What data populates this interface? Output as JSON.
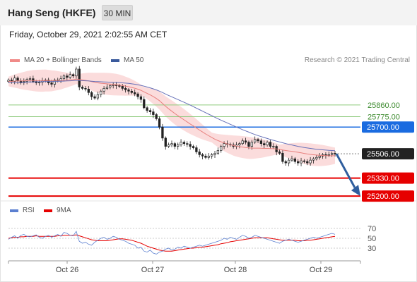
{
  "header": {
    "title": "Hang Seng (HKFE)",
    "timeframe": "30 MIN"
  },
  "timestamp": "Friday, October 29, 2021 2:02:55 AM CET",
  "copyright": "Research © 2021 Trading Central",
  "colors": {
    "bollinger_fill": "#fbdcdc",
    "ma20": "#e8807e",
    "ma50": "#6670b8",
    "up_candle": "#ffffff",
    "down_candle": "#222222",
    "support": "#e60000",
    "pivot": "#1a6be0",
    "resistance": "#8fcb7e",
    "last_price": "#222222",
    "arrow": "#2f5e9e",
    "rsi": "#5b7fd0",
    "rsi_ma": "#e60000"
  },
  "chart_data": [
    {
      "type": "line",
      "name": "price-panel",
      "legend": [
        {
          "label": "MA 20 + Bollinger Bands",
          "color": "#f08a88"
        },
        {
          "label": "MA 50",
          "color": "#3a5a9c"
        }
      ],
      "x_tick_labels": [
        "Oct 26",
        "Oct 27",
        "Oct 28",
        "Oct 29"
      ],
      "ylim": [
        25180,
        26130
      ],
      "levels": [
        {
          "label": "25860.00",
          "value": 25860,
          "kind": "resistance"
        },
        {
          "label": "25775.00",
          "value": 25775,
          "kind": "resistance"
        },
        {
          "label": "25700.00",
          "value": 25700,
          "kind": "pivot"
        },
        {
          "label": "25506.00",
          "value": 25506,
          "kind": "last"
        },
        {
          "label": "25330.00",
          "value": 25330,
          "kind": "support"
        },
        {
          "label": "25200.00",
          "value": 25200,
          "kind": "support"
        }
      ],
      "close": [
        26040,
        26030,
        26055,
        26035,
        26020,
        26030,
        26045,
        26050,
        26030,
        26020,
        26025,
        26035,
        26040,
        26020,
        26010,
        26040,
        26035,
        26050,
        26070,
        26060,
        26080,
        26070,
        26120,
        25990,
        25980,
        25975,
        25950,
        25920,
        25910,
        25935,
        25960,
        25980,
        25990,
        26000,
        26005,
        26000,
        25995,
        25980,
        25970,
        25960,
        25950,
        25940,
        25920,
        25900,
        25840,
        25820,
        25810,
        25790,
        25760,
        25700,
        25620,
        25560,
        25570,
        25580,
        25560,
        25570,
        25590,
        25580,
        25575,
        25560,
        25550,
        25520,
        25500,
        25490,
        25480,
        25490,
        25500,
        25510,
        25530,
        25560,
        25580,
        25575,
        25570,
        25560,
        25570,
        25580,
        25600,
        25590,
        25560,
        25590,
        25610,
        25600,
        25580,
        25570,
        25590,
        25560,
        25560,
        25520,
        25510,
        25450,
        25440,
        25460,
        25470,
        25450,
        25440,
        25455,
        25450,
        25440,
        25460,
        25470,
        25480,
        25490,
        25500,
        25495,
        25500,
        25510,
        25506
      ],
      "ma20": [
        26030,
        26031,
        26033,
        26034,
        26034,
        26035,
        26036,
        26037,
        26037,
        26036,
        26036,
        26036,
        26037,
        26036,
        26035,
        26036,
        26036,
        26037,
        26039,
        26040,
        26042,
        26043,
        26047,
        26044,
        26041,
        26038,
        26034,
        26029,
        26024,
        26020,
        26017,
        26015,
        26013,
        26011,
        26009,
        26007,
        26004,
        26001,
        25996,
        25992,
        25987,
        25981,
        25974,
        25966,
        25955,
        25944,
        25933,
        25921,
        25907,
        25891,
        25871,
        25850,
        25832,
        25815,
        25798,
        25782,
        25767,
        25752,
        25737,
        25722,
        25708,
        25693,
        25678,
        25664,
        25650,
        25637,
        25624,
        25612,
        25602,
        25593,
        25585,
        25578,
        25572,
        25566,
        25562,
        25558,
        25555,
        25552,
        25549,
        25547,
        25547,
        25547,
        25546,
        25545,
        25545,
        25544,
        25543,
        25541,
        25538,
        25534,
        25530,
        25527,
        25524,
        25520,
        25517,
        25513,
        25509,
        25505,
        25502,
        25499,
        25497,
        25495,
        25494,
        25493,
        25492,
        25492,
        25492
      ],
      "ma50": [
        26020,
        26021,
        26022,
        26023,
        26024,
        26025,
        26026,
        26027,
        26027,
        26028,
        26028,
        26029,
        26030,
        26030,
        26030,
        26031,
        26031,
        26032,
        26033,
        26034,
        26035,
        26036,
        26038,
        26037,
        26036,
        26035,
        26034,
        26032,
        26030,
        26029,
        26028,
        26027,
        26026,
        26025,
        26024,
        26023,
        26022,
        26020,
        26018,
        26016,
        26013,
        26010,
        26006,
        26002,
        25996,
        25990,
        25984,
        25977,
        25969,
        25960,
        25950,
        25939,
        25929,
        25919,
        25909,
        25899,
        25889,
        25879,
        25869,
        25859,
        25848,
        25837,
        25826,
        25815,
        25804,
        25793,
        25782,
        25771,
        25760,
        25750,
        25740,
        25730,
        25720,
        25710,
        25700,
        25690,
        25681,
        25672,
        25663,
        25654,
        25646,
        25638,
        25631,
        25624,
        25617,
        25610,
        25604,
        25598,
        25592,
        25586,
        25580,
        25575,
        25570,
        25565,
        25560,
        25556,
        25552,
        25548,
        25545,
        25542,
        25539,
        25537,
        25535,
        25533,
        25531,
        25530,
        25529
      ],
      "forecast_arrow": {
        "from": 25506,
        "to": 25220
      }
    },
    {
      "type": "line",
      "name": "rsi-panel",
      "legend": [
        {
          "label": "RSI",
          "color": "#5b7fd0"
        },
        {
          "label": "9MA",
          "color": "#e60000"
        }
      ],
      "y_tick_labels": [
        "70",
        "50",
        "30"
      ],
      "ylim": [
        10,
        90
      ],
      "rsi": [
        48,
        52,
        55,
        50,
        56,
        58,
        54,
        53,
        55,
        57,
        52,
        50,
        54,
        56,
        52,
        55,
        58,
        54,
        62,
        60,
        56,
        55,
        64,
        44,
        40,
        42,
        38,
        36,
        42,
        46,
        50,
        52,
        48,
        50,
        54,
        52,
        48,
        46,
        44,
        40,
        38,
        36,
        30,
        32,
        24,
        22,
        26,
        20,
        18,
        22,
        24,
        28,
        30,
        26,
        28,
        32,
        30,
        34,
        32,
        30,
        32,
        34,
        36,
        34,
        36,
        38,
        40,
        42,
        44,
        46,
        50,
        48,
        52,
        50,
        48,
        52,
        56,
        54,
        50,
        52,
        56,
        54,
        52,
        50,
        48,
        46,
        44,
        42,
        40,
        44,
        46,
        48,
        46,
        44,
        42,
        44,
        46,
        48,
        50,
        52,
        50,
        52,
        54,
        56,
        58,
        60,
        58
      ],
      "rsi_ma": [
        50,
        51,
        52,
        52,
        53,
        53,
        54,
        54,
        54,
        55,
        54,
        54,
        54,
        54,
        54,
        54,
        55,
        55,
        56,
        56,
        56,
        56,
        57,
        55,
        53,
        51,
        49,
        47,
        46,
        45,
        45,
        45,
        45,
        46,
        47,
        48,
        49,
        49,
        48,
        47,
        46,
        44,
        42,
        40,
        37,
        34,
        32,
        30,
        28,
        26,
        25,
        24,
        24,
        24,
        25,
        26,
        27,
        28,
        29,
        30,
        30,
        31,
        32,
        32,
        33,
        34,
        35,
        36,
        37,
        39,
        40,
        41,
        43,
        44,
        45,
        46,
        47,
        48,
        49,
        50,
        51,
        51,
        51,
        51,
        51,
        50,
        49,
        48,
        47,
        46,
        46,
        46,
        46,
        46,
        45,
        45,
        45,
        46,
        46,
        47,
        48,
        49,
        50,
        51,
        52,
        53,
        54
      ]
    }
  ]
}
